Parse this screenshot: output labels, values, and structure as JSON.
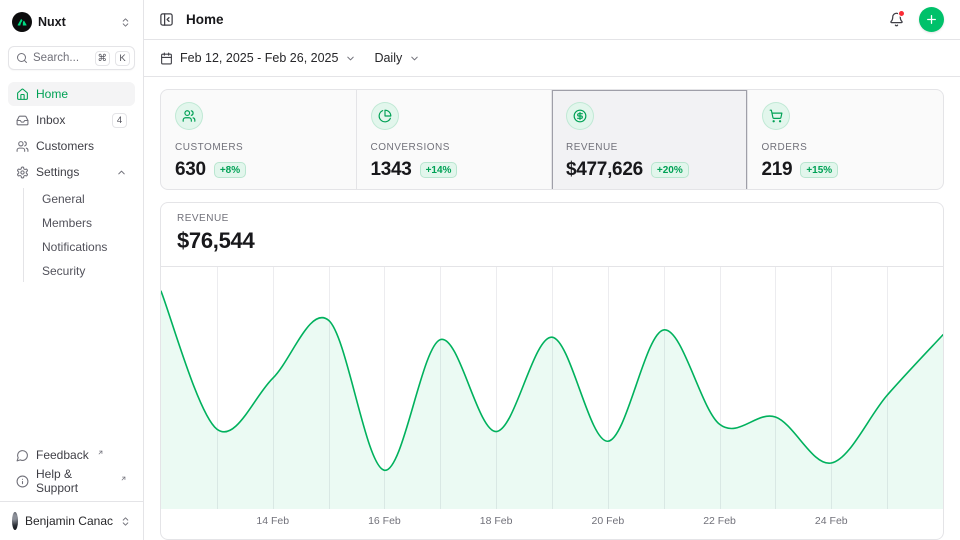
{
  "colors": {
    "accent": "#00c16a",
    "accent-text": "#00a155",
    "accent-soft": "#e2f6ec",
    "border": "#e4e4e7",
    "gridline": "#ececef",
    "muted": "#71717a",
    "text": "#27272a",
    "selected-border": "#9f9fa8"
  },
  "sidebar": {
    "workspace": "Nuxt",
    "search": {
      "placeholder": "Search...",
      "kbd_cmd": "⌘",
      "kbd_k": "K"
    },
    "items": [
      {
        "label": "Home"
      },
      {
        "label": "Inbox",
        "badge": "4"
      },
      {
        "label": "Customers"
      },
      {
        "label": "Settings"
      }
    ],
    "settings_children": [
      {
        "label": "General"
      },
      {
        "label": "Members"
      },
      {
        "label": "Notifications"
      },
      {
        "label": "Security"
      }
    ],
    "footer": [
      {
        "label": "Feedback"
      },
      {
        "label": "Help & Support"
      }
    ],
    "user": {
      "name": "Benjamin Canac"
    }
  },
  "header": {
    "title": "Home"
  },
  "toolbar": {
    "date_range": "Feb 12, 2025 - Feb 26, 2025",
    "period": "Daily"
  },
  "stats": [
    {
      "label": "CUSTOMERS",
      "value": "630",
      "delta": "+8%",
      "icon": "users-icon"
    },
    {
      "label": "CONVERSIONS",
      "value": "1343",
      "delta": "+14%",
      "icon": "pie-chart-icon"
    },
    {
      "label": "REVENUE",
      "value": "$477,626",
      "delta": "+20%",
      "icon": "dollar-circle-icon",
      "selected": true
    },
    {
      "label": "ORDERS",
      "value": "219",
      "delta": "+15%",
      "icon": "cart-icon"
    }
  ],
  "chart_header": {
    "label": "REVENUE",
    "value": "$76,544"
  },
  "chart_data": {
    "type": "area",
    "title": "Revenue, daily, Feb 12 2025 - Feb 26 2025",
    "x": [
      "12 Feb",
      "13 Feb",
      "14 Feb",
      "15 Feb",
      "16 Feb",
      "17 Feb",
      "18 Feb",
      "19 Feb",
      "20 Feb",
      "21 Feb",
      "22 Feb",
      "23 Feb",
      "24 Feb",
      "25 Feb",
      "26 Feb"
    ],
    "values": [
      90000,
      33000,
      54000,
      78000,
      16000,
      70000,
      32000,
      71000,
      28000,
      74000,
      35000,
      38000,
      19000,
      47000,
      72000
    ],
    "ylim": [
      0,
      100000
    ],
    "x_tick_indices": [
      2,
      4,
      6,
      8,
      10,
      12
    ],
    "x_tick_labels": [
      "14 Feb",
      "16 Feb",
      "18 Feb",
      "20 Feb",
      "22 Feb",
      "24 Feb"
    ],
    "grid": "vertical-per-day",
    "legend": "none",
    "line_color": "#00b15d",
    "area_color": "rgba(0,193,106,0.08)",
    "smooth": true
  }
}
